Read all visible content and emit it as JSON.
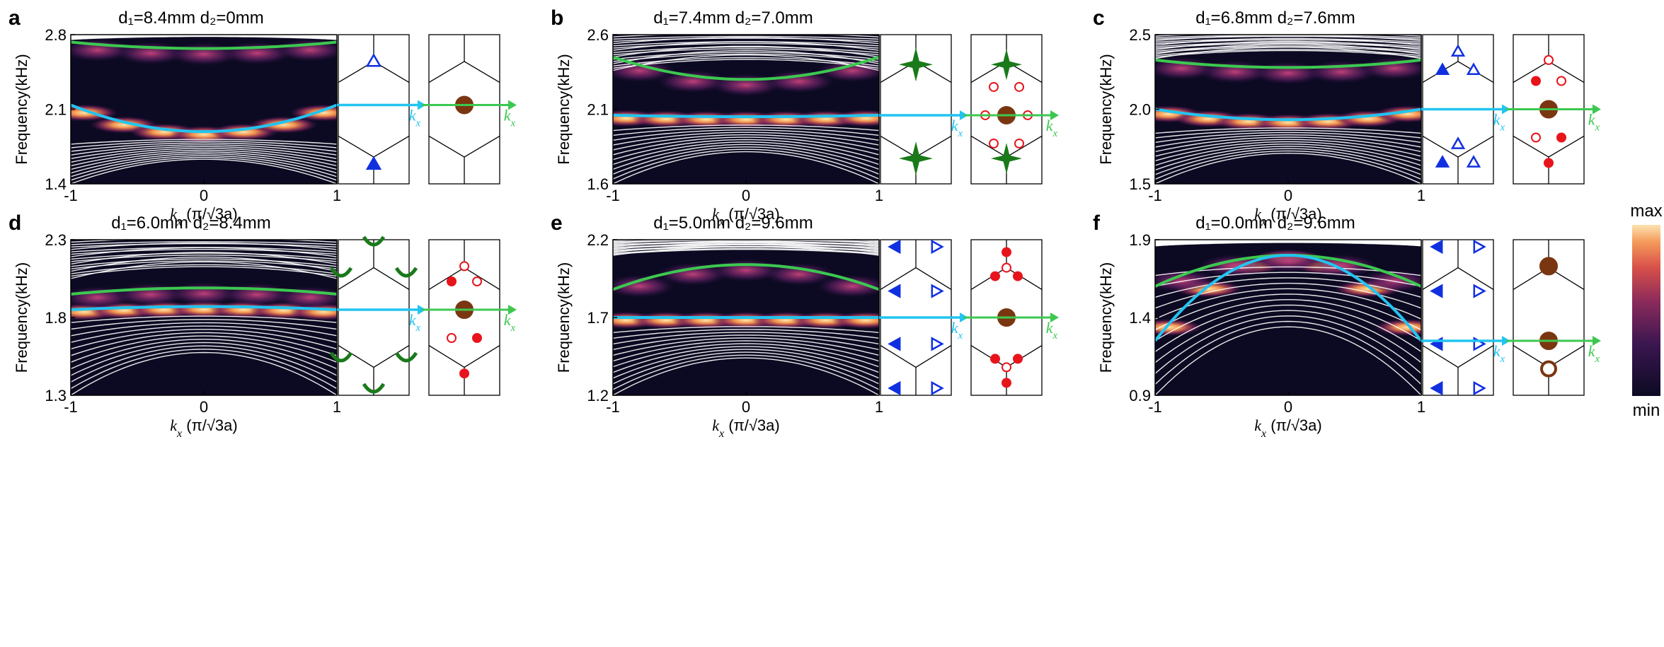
{
  "colors": {
    "cyan": "#22c4f0",
    "green": "#3cc850",
    "blue": "#1030e0",
    "red": "#e8141c",
    "brown": "#7a3610",
    "darkgreen": "#1a7a1a",
    "heat_bg": "#0c0a22"
  },
  "colorbar": {
    "max_label": "max",
    "min_label": "min"
  },
  "chart_data": [
    {
      "type": "band-structure",
      "panel": "a",
      "title": "d₁=8.4mm  d₂=0mm",
      "ylabel": "Frequency(kHz)",
      "xlabel": "kx (π/√3a)",
      "kx_label": "kx",
      "xticks": [
        "-1",
        "0",
        "1"
      ],
      "xlim": [
        -1,
        1
      ],
      "ylim": [
        1.4,
        2.8
      ],
      "yticks": [
        "1.4",
        "2.1",
        "2.8"
      ],
      "edge_state": {
        "color": "cyan",
        "kx": [
          -1,
          0,
          1
        ],
        "f": [
          2.14,
          1.89,
          2.14
        ]
      },
      "bulk_state": {
        "color": "green",
        "kx": [
          -1,
          0,
          1
        ],
        "f": [
          2.73,
          2.67,
          2.73
        ]
      },
      "cell_glyph": "triangles-single",
      "center_glyph": "brown-dot"
    },
    {
      "type": "band-structure",
      "panel": "b",
      "title": "d₁=7.4mm  d₂=7.0mm",
      "ylabel": "Frequency(kHz)",
      "xlabel": "kx (π/√3a)",
      "kx_label": "kx",
      "xticks": [
        "-1",
        "0",
        "1"
      ],
      "xlim": [
        -1,
        1
      ],
      "ylim": [
        1.6,
        2.6
      ],
      "yticks": [
        "1.6",
        "2.1",
        "2.6"
      ],
      "edge_state": {
        "color": "cyan",
        "kx": [
          -1,
          0,
          1
        ],
        "f": [
          2.06,
          2.05,
          2.06
        ]
      },
      "bulk_state": {
        "color": "green",
        "kx": [
          -1,
          0,
          1
        ],
        "f": [
          2.45,
          2.3,
          2.45
        ]
      },
      "cell_glyph": "stars",
      "center_glyph": "brown-dot-with-red-rings"
    },
    {
      "type": "band-structure",
      "panel": "c",
      "title": "d₁=6.8mm  d₂=7.6mm",
      "ylabel": "Frequency(kHz)",
      "xlabel": "kx (π/√3a)",
      "kx_label": "kx",
      "xticks": [
        "-1",
        "0",
        "1"
      ],
      "xlim": [
        -1,
        1
      ],
      "ylim": [
        1.5,
        2.5
      ],
      "yticks": [
        "1.5",
        "2.0",
        "2.5"
      ],
      "edge_state": {
        "color": "cyan",
        "kx": [
          -1,
          0,
          1
        ],
        "f": [
          2.0,
          1.93,
          2.0
        ]
      },
      "bulk_state": {
        "color": "green",
        "kx": [
          -1,
          0,
          1
        ],
        "f": [
          2.33,
          2.28,
          2.33
        ]
      },
      "cell_glyph": "triangle-trimers",
      "center_glyph": "brown-dot-with-red-dots"
    },
    {
      "type": "band-structure",
      "panel": "d",
      "title": "d₁=6.0mm  d₂=8.4mm",
      "ylabel": "Frequency(kHz)",
      "xlabel": "kx (π/√3a)",
      "kx_label": "kx",
      "xticks": [
        "-1",
        "0",
        "1"
      ],
      "xlim": [
        -1,
        1
      ],
      "ylim": [
        1.3,
        2.3
      ],
      "yticks": [
        "1.3",
        "1.8",
        "2.3"
      ],
      "edge_state": {
        "color": "cyan",
        "kx": [
          -1,
          0,
          1
        ],
        "f": [
          1.85,
          1.87,
          1.85
        ]
      },
      "bulk_state": {
        "color": "green",
        "kx": [
          -1,
          0,
          1
        ],
        "f": [
          1.95,
          1.99,
          1.95
        ]
      },
      "cell_glyph": "green-arcs",
      "center_glyph": "brown-dot-with-red-dots"
    },
    {
      "type": "band-structure",
      "panel": "e",
      "title": "d₁=5.0mm  d₂=9.6mm",
      "ylabel": "Frequency(kHz)",
      "xlabel": "kx (π/√3a)",
      "kx_label": "kx",
      "xticks": [
        "-1",
        "0",
        "1"
      ],
      "xlim": [
        -1,
        1
      ],
      "ylim": [
        1.2,
        2.2
      ],
      "yticks": [
        "1.2",
        "1.7",
        "2.2"
      ],
      "edge_state": {
        "color": "cyan",
        "kx": [
          -1,
          0,
          1
        ],
        "f": [
          1.7,
          1.7,
          1.7
        ]
      },
      "bulk_state": {
        "color": "green",
        "kx": [
          -1,
          0,
          1
        ],
        "f": [
          1.88,
          2.04,
          1.88
        ]
      },
      "cell_glyph": "triangles-pairs",
      "center_glyph": "brown-dot-with-red-trimers"
    },
    {
      "type": "band-structure",
      "panel": "f",
      "title": "d₁=0.0mm  d₂=9.6mm",
      "ylabel": "Frequency(kHz)",
      "xlabel": "kx (π/√3a)",
      "kx_label": "kx",
      "xticks": [
        "-1",
        "0",
        "1"
      ],
      "xlim": [
        -1,
        1
      ],
      "ylim": [
        0.9,
        1.9
      ],
      "yticks": [
        "0.9",
        "1.4",
        "1.9"
      ],
      "edge_state": {
        "color": "cyan",
        "kx": [
          -1,
          0,
          1
        ],
        "f": [
          1.25,
          1.8,
          1.25
        ]
      },
      "bulk_state": {
        "color": "green",
        "kx": [
          -1,
          0,
          1
        ],
        "f": [
          1.6,
          1.8,
          1.6
        ]
      },
      "cell_glyph": "triangles-pairs",
      "center_glyph": "three-brown-dots"
    }
  ]
}
